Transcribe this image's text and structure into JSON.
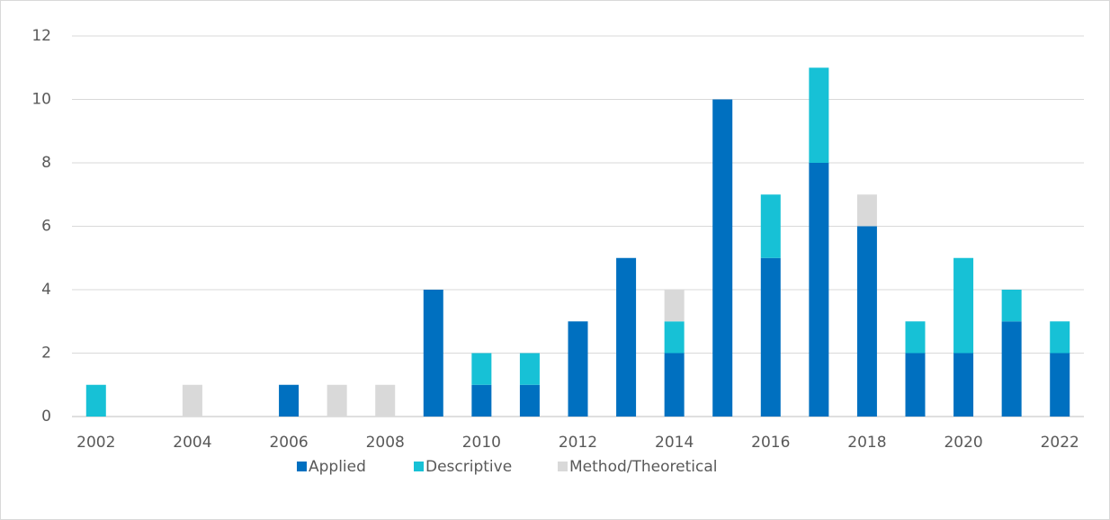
{
  "chart_data": {
    "type": "stacked_bar",
    "categories": [
      "2002",
      null,
      "2004",
      null,
      "2006",
      null,
      "2008",
      null,
      "2010",
      null,
      "2012",
      null,
      "2014",
      null,
      "2016",
      null,
      "2018",
      null,
      "2020",
      null,
      "2022"
    ],
    "series": [
      {
        "name": "Applied",
        "color": "#0070c0",
        "values": [
          0,
          0,
          0,
          0,
          1,
          0,
          0,
          4,
          1,
          1,
          3,
          5,
          2,
          10,
          5,
          8,
          6,
          2,
          2,
          3,
          2
        ]
      },
      {
        "name": "Descriptive",
        "color": "#17c1d6",
        "values": [
          1,
          0,
          0,
          0,
          0,
          0,
          0,
          0,
          1,
          1,
          0,
          0,
          1,
          0,
          2,
          3,
          0,
          1,
          3,
          1,
          1
        ]
      },
      {
        "name": "Method/Theoretical",
        "color": "#d9d9d9",
        "values": [
          0,
          0,
          1,
          0,
          0,
          1,
          1,
          0,
          0,
          0,
          0,
          0,
          1,
          0,
          0,
          0,
          1,
          0,
          0,
          0,
          0
        ]
      }
    ],
    "ylim": [
      0,
      12
    ],
    "yticks": [
      0,
      2,
      4,
      6,
      8,
      10,
      12
    ],
    "grid": true,
    "legend": "bottom"
  }
}
